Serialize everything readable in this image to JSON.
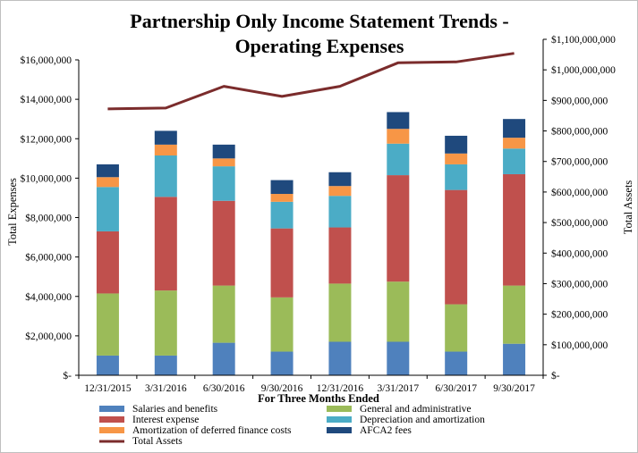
{
  "chart_data": {
    "type": "bar",
    "stacked": true,
    "title": "Partnership Only Income Statement Trends -",
    "title_line2": "Operating Expenses",
    "xlabel": "For Three Months  Ended",
    "ylabel": "Total Expenses",
    "y2label": "Total Assets",
    "categories": [
      "12/31/2015",
      "3/31/2016",
      "6/30/2016",
      "9/30/2016",
      "12/31/2016",
      "3/31/2017",
      "6/30/2017",
      "9/30/2017"
    ],
    "ylim": [
      0,
      16000000
    ],
    "y2lim": [
      0,
      1100000000
    ],
    "y_ticks": [
      {
        "value": 0,
        "label": "$-"
      },
      {
        "value": 2000000,
        "label": "$2,000,000"
      },
      {
        "value": 4000000,
        "label": "$4,000,000"
      },
      {
        "value": 6000000,
        "label": "$6,000,000"
      },
      {
        "value": 8000000,
        "label": "$8,000,000"
      },
      {
        "value": 10000000,
        "label": "$10,000,000"
      },
      {
        "value": 12000000,
        "label": "$12,000,000"
      },
      {
        "value": 14000000,
        "label": "$14,000,000"
      },
      {
        "value": 16000000,
        "label": "$16,000,000"
      }
    ],
    "y2_ticks": [
      {
        "value": 0,
        "label": "$-"
      },
      {
        "value": 100000000,
        "label": "$100,000,000"
      },
      {
        "value": 200000000,
        "label": "$200,000,000"
      },
      {
        "value": 300000000,
        "label": "$300,000,000"
      },
      {
        "value": 400000000,
        "label": "$400,000,000"
      },
      {
        "value": 500000000,
        "label": "$500,000,000"
      },
      {
        "value": 600000000,
        "label": "$600,000,000"
      },
      {
        "value": 700000000,
        "label": "$700,000,000"
      },
      {
        "value": 800000000,
        "label": "$800,000,000"
      },
      {
        "value": 900000000,
        "label": "$900,000,000"
      },
      {
        "value": 1000000000,
        "label": "$1,000,000,000"
      },
      {
        "value": 1100000000,
        "label": "$1,100,000,000"
      }
    ],
    "series": [
      {
        "name": "Salaries and benefits",
        "color": "#4f81bd",
        "values": [
          1000000,
          1000000,
          1650000,
          1200000,
          1700000,
          1700000,
          1200000,
          1600000
        ]
      },
      {
        "name": "General and administrative",
        "color": "#9bbb59",
        "values": [
          3150000,
          3300000,
          2900000,
          2750000,
          2950000,
          3050000,
          2400000,
          2950000
        ]
      },
      {
        "name": "Interest expense",
        "color": "#c0504d",
        "values": [
          3150000,
          4750000,
          4300000,
          3500000,
          2850000,
          5400000,
          5800000,
          5650000
        ]
      },
      {
        "name": "Depreciation and amortization",
        "color": "#4bacc6",
        "values": [
          2250000,
          2100000,
          1750000,
          1350000,
          1600000,
          1600000,
          1300000,
          1300000
        ]
      },
      {
        "name": "Amortization of deferred finance costs",
        "color": "#f79646",
        "values": [
          500000,
          550000,
          400000,
          400000,
          500000,
          750000,
          550000,
          550000
        ]
      },
      {
        "name": "AFCA2 fees",
        "color": "#1f497d",
        "values": [
          650000,
          700000,
          700000,
          700000,
          700000,
          850000,
          900000,
          950000
        ]
      }
    ],
    "line_series": {
      "name": "Total Assets",
      "color": "#7b2c2c",
      "axis": "right",
      "values": [
        872000000,
        875000000,
        946000000,
        913000000,
        946000000,
        1023000000,
        1026000000,
        1054000000
      ]
    },
    "legend_position": "bottom",
    "grid": false
  }
}
